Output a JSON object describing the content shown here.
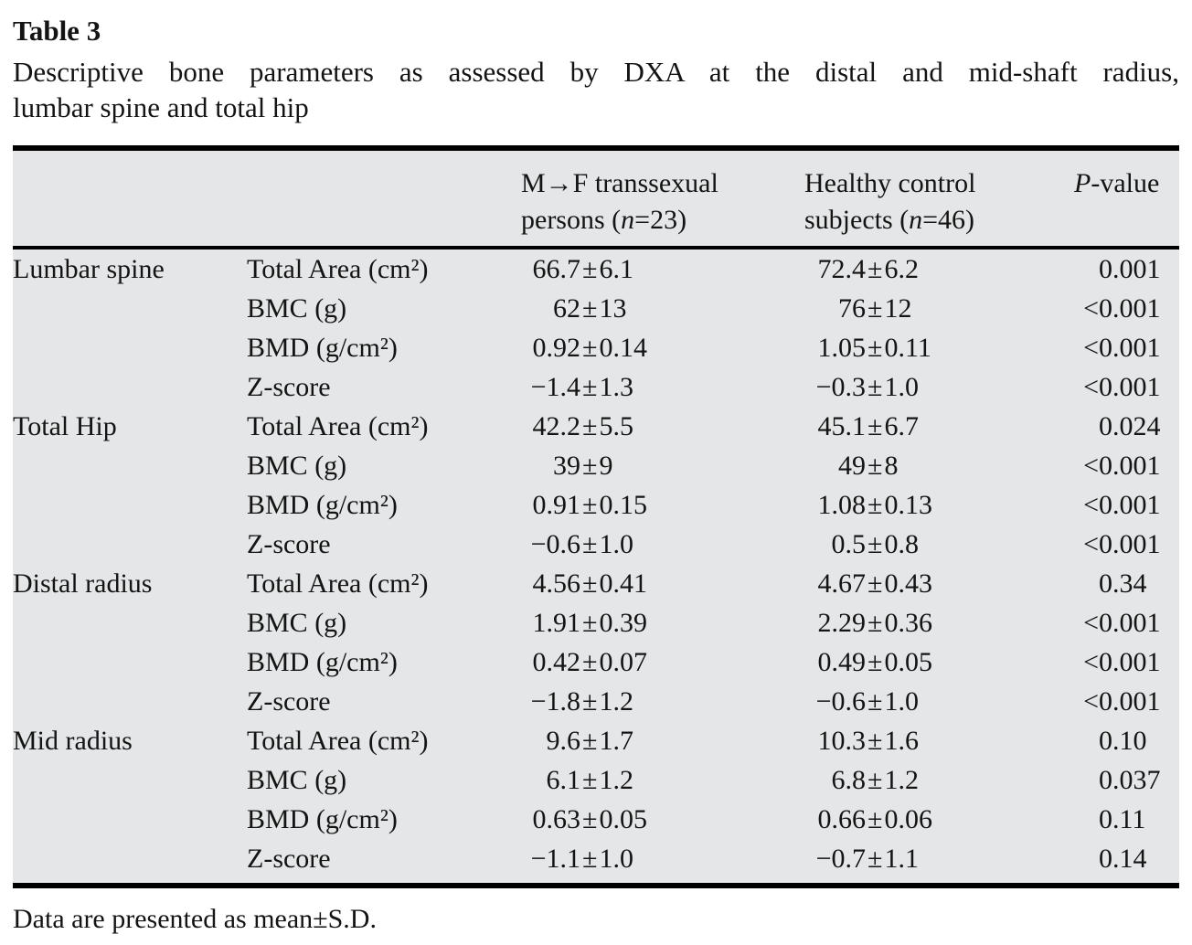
{
  "page": {
    "title": "Table 3",
    "caption_line1": "Descriptive bone parameters as assessed by DXA at the distal and mid-shaft radius,",
    "caption_line2": "lumbar spine and total hip",
    "footnote": "Data are presented as mean±S.D."
  },
  "style": {
    "table_background": "#e5e6e7",
    "rule_color": "#000000",
    "text_color": "#141414"
  },
  "table": {
    "header": {
      "group1": {
        "line1": "M→F transsexual",
        "line2_pre": "persons (",
        "n": "n",
        "line2_post": "=23)"
      },
      "group2": {
        "line1": "Healthy control",
        "line2_pre": "subjects (",
        "n": "n",
        "line2_post": "=46)"
      },
      "pvalue": {
        "italic": "P",
        "rest": "-value"
      }
    },
    "rows": [
      {
        "site": "Lumbar spine",
        "parameter": "Total Area (cm²)",
        "mf_value": "66.7±6.1",
        "control_value": "72.4±6.2",
        "p_value": "0.001"
      },
      {
        "site": "",
        "parameter": "BMC (g)",
        "mf_value": "62±13",
        "control_value": "76±12",
        "p_value": "<0.001"
      },
      {
        "site": "",
        "parameter": "BMD (g/cm²)",
        "mf_value": "0.92±0.14",
        "control_value": "1.05±0.11",
        "p_value": "<0.001"
      },
      {
        "site": "",
        "parameter": "Z-score",
        "mf_value": "−1.4±1.3",
        "control_value": "−0.3±1.0",
        "p_value": "<0.001"
      },
      {
        "site": "Total Hip",
        "parameter": "Total Area (cm²)",
        "mf_value": "42.2±5.5",
        "control_value": "45.1±6.7",
        "p_value": "0.024"
      },
      {
        "site": "",
        "parameter": "BMC (g)",
        "mf_value": "39±9",
        "control_value": "49±8",
        "p_value": "<0.001"
      },
      {
        "site": "",
        "parameter": "BMD (g/cm²)",
        "mf_value": "0.91±0.15",
        "control_value": "1.08±0.13",
        "p_value": "<0.001"
      },
      {
        "site": "",
        "parameter": "Z-score",
        "mf_value": "−0.6±1.0",
        "control_value": "0.5±0.8",
        "p_value": "<0.001"
      },
      {
        "site": "Distal radius",
        "parameter": "Total Area (cm²)",
        "mf_value": "4.56±0.41",
        "control_value": "4.67±0.43",
        "p_value": "0.34"
      },
      {
        "site": "",
        "parameter": "BMC (g)",
        "mf_value": "1.91±0.39",
        "control_value": "2.29±0.36",
        "p_value": "<0.001"
      },
      {
        "site": "",
        "parameter": "BMD (g/cm²)",
        "mf_value": "0.42±0.07",
        "control_value": "0.49±0.05",
        "p_value": "<0.001"
      },
      {
        "site": "",
        "parameter": "Z-score",
        "mf_value": "−1.8±1.2",
        "control_value": "−0.6±1.0",
        "p_value": "<0.001"
      },
      {
        "site": "Mid radius",
        "parameter": "Total Area (cm²)",
        "mf_value": "9.6±1.7",
        "control_value": "10.3±1.6",
        "p_value": "0.10"
      },
      {
        "site": "",
        "parameter": "BMC (g)",
        "mf_value": "6.1±1.2",
        "control_value": "6.8±1.2",
        "p_value": "0.037"
      },
      {
        "site": "",
        "parameter": "BMD (g/cm²)",
        "mf_value": "0.63±0.05",
        "control_value": "0.66±0.06",
        "p_value": "0.11"
      },
      {
        "site": "",
        "parameter": "Z-score",
        "mf_value": "−1.1±1.0",
        "control_value": "−0.7±1.1",
        "p_value": "0.14"
      }
    ]
  }
}
